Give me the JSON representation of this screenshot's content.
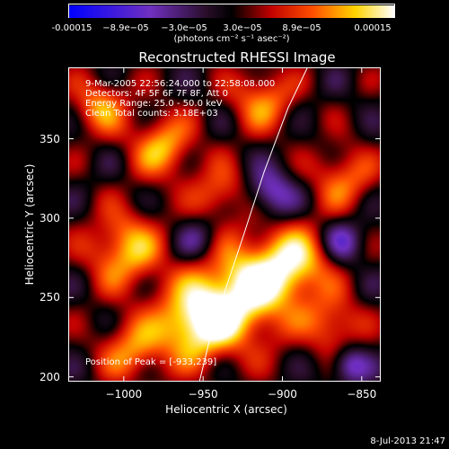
{
  "colorbar": {
    "ticks": [
      "-0.00015",
      "−8.9e−05",
      "−3.0e−05",
      "3.0e−05",
      "8.9e−05",
      "0.00015"
    ],
    "units": "(photons cm⁻² s⁻¹ asec⁻²)"
  },
  "info": {
    "time": "9-Mar-2005 22:56:24.000 to 22:58:08.000",
    "detectors": "Detectors: 4F 5F 6F 7F 8F, Att 0",
    "energy": "Energy Range: 25.0 - 50.0 keV",
    "algo": "Clean     Total counts: 3.18E+03"
  },
  "peak_label": "Position of Peak = [-933,239]",
  "timestamp": "8-Jul-2013 21:47",
  "chart_data": {
    "type": "heatmap",
    "title": "Reconstructed RHESSI Image",
    "xlabel": "Heliocentric X (arcsec)",
    "ylabel": "Heliocentric Y (arcsec)",
    "xlim": [
      -1035,
      -838
    ],
    "ylim": [
      197,
      395
    ],
    "x_ticks": [
      -1000,
      -950,
      -900,
      -850
    ],
    "x_tick_labels": [
      "−1000",
      "−950",
      "−900",
      "−850"
    ],
    "y_ticks": [
      200,
      250,
      300,
      350
    ],
    "y_tick_labels": [
      "200",
      "250",
      "300",
      "350"
    ],
    "color_range": [
      -0.00015,
      0.00015
    ],
    "peak": [
      -933,
      239
    ],
    "limb_curve": [
      [
        -953,
        197
      ],
      [
        -945,
        230
      ],
      [
        -935,
        260
      ],
      [
        -925,
        290
      ],
      [
        -912,
        330
      ],
      [
        -897,
        370
      ],
      [
        -885,
        395
      ]
    ]
  },
  "colors": {
    "background": "#000000",
    "colormap": [
      "#0000ff",
      "#7030c0",
      "#2a0e2a",
      "#000000",
      "#c00000",
      "#ff5000",
      "#ffd400",
      "#ffffff"
    ]
  }
}
